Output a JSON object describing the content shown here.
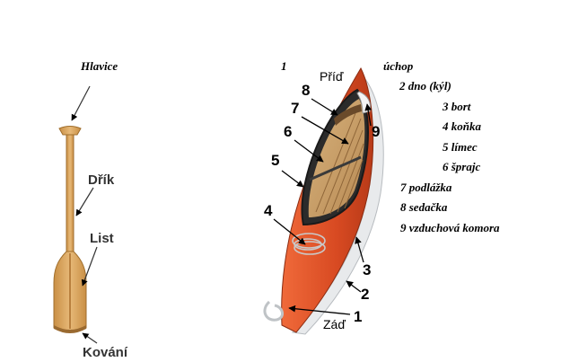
{
  "paddle": {
    "labels": {
      "hlavice": "Hlavice",
      "drik": "Dřík",
      "list": "List",
      "kovani": "Kování"
    }
  },
  "kayak": {
    "bow_label": "Příď",
    "stern_label": "Záď",
    "numbers": [
      "1",
      "2",
      "3",
      "4",
      "5",
      "6",
      "7",
      "8",
      "9"
    ],
    "legend_top_number": "1",
    "legend": [
      {
        "text": "úchop"
      },
      {
        "text": "2 dno (kýl)"
      },
      {
        "text": "3 bort"
      },
      {
        "text": "4 koňka"
      },
      {
        "text": "5 límec"
      },
      {
        "text": "6 šprajc"
      },
      {
        "text": "7 podlážka"
      },
      {
        "text": "8 sedačka"
      },
      {
        "text": "9 vzduchová komora"
      }
    ]
  },
  "colors": {
    "paddle_wood": "#d9a45c",
    "paddle_edge": "#a06e2c",
    "hull_orange": "#e0532a",
    "hull_white": "#e8eaec",
    "deck_wood": "#c9a06a"
  }
}
